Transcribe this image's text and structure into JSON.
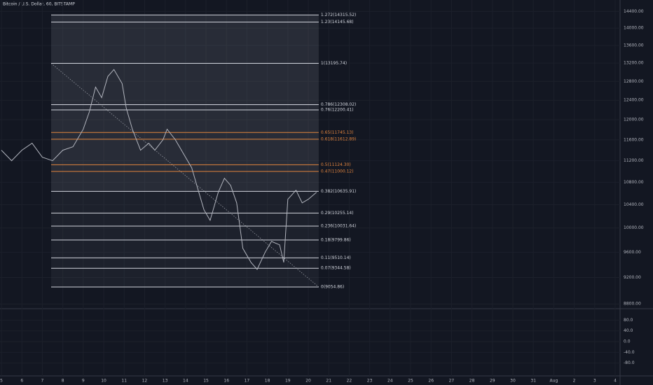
{
  "chart_data": {
    "type": "line",
    "title": "Bitcoin / U.S. Dollar, 60, BITSTAMP",
    "log_scale": true,
    "grid": true,
    "color": "#b2b5be",
    "x": [
      5.0,
      5.5,
      6.0,
      6.5,
      7.0,
      7.5,
      8.0,
      8.5,
      9.0,
      9.3,
      9.6,
      9.9,
      10.2,
      10.5,
      10.9,
      11.1,
      11.4,
      11.8,
      12.2,
      12.5,
      12.9,
      13.1,
      13.5,
      14.0,
      14.3,
      14.6,
      14.9,
      15.2,
      15.6,
      15.9,
      16.2,
      16.5,
      16.8,
      17.2,
      17.5,
      17.9,
      18.2,
      18.6,
      18.8,
      19.0,
      19.4,
      19.7,
      20.0,
      20.4
    ],
    "values": [
      11400,
      11200,
      11400,
      11535,
      11266,
      11200,
      11400,
      11467,
      11810,
      12164,
      12678,
      12455,
      12905,
      13058,
      12753,
      12237,
      11810,
      11400,
      11535,
      11400,
      11604,
      11810,
      11604,
      11266,
      11069,
      10683,
      10311,
      10130,
      10620,
      10873,
      10746,
      10433,
      9663,
      9437,
      9327,
      9606,
      9777,
      9720,
      9437,
      10496,
      10657,
      10433,
      10496,
      10620
    ],
    "xlim": [
      4.93,
      35.24
    ],
    "xticks": [
      5,
      6,
      7,
      8,
      9,
      10,
      11,
      12,
      13,
      14,
      15,
      16,
      17,
      18,
      19,
      20,
      21,
      22,
      23,
      24,
      25,
      26,
      27,
      28,
      29,
      30,
      31,
      {
        "value": 32,
        "label": "Aug"
      },
      {
        "value": 33,
        "label": "2"
      },
      {
        "value": 34,
        "label": "3"
      },
      {
        "value": 35,
        "label": "4"
      }
    ],
    "ylim": [
      8740,
      14680
    ],
    "yticks": [
      {
        "value": 8800,
        "label": "8800.00"
      },
      {
        "value": 9200,
        "label": "9200.00"
      },
      {
        "value": 9600,
        "label": "9600.00"
      },
      {
        "value": 10000,
        "label": "10000.00"
      },
      {
        "value": 10400,
        "label": "10400.00"
      },
      {
        "value": 10800,
        "label": "10800.00"
      },
      {
        "value": 11200,
        "label": "11200.00"
      },
      {
        "value": 11600,
        "label": "11600.00"
      },
      {
        "value": 12000,
        "label": "12000.00"
      },
      {
        "value": 12400,
        "label": "12400.00"
      },
      {
        "value": 12800,
        "label": "12800.00"
      },
      {
        "value": 13200,
        "label": "13200.00"
      },
      {
        "value": 13600,
        "label": "13600.00"
      },
      {
        "value": 14000,
        "label": "14000.00"
      },
      {
        "value": 14400,
        "label": "14400.00"
      }
    ],
    "fib_range": [
      7.43,
      20.51
    ],
    "levels": [
      {
        "label": "1.272(14315.52)",
        "price": 14315.52,
        "color": "#d1d4dc"
      },
      {
        "label": "1.23(14145.68)",
        "price": 14145.68,
        "color": "#d1d4dc"
      },
      {
        "label": "1(13195.74)",
        "price": 13195.74,
        "color": "#d1d4dc"
      },
      {
        "label": "0.786(12308.02)",
        "price": 12308.02,
        "color": "#d1d4dc"
      },
      {
        "label": "0.76(12200.41)",
        "price": 12200.41,
        "color": "#d1d4dc"
      },
      {
        "label": "0.65(11745.13)",
        "price": 11745.13,
        "color": "#e0833d"
      },
      {
        "label": "0.618(11612.89)",
        "price": 11612.89,
        "color": "#e0833d"
      },
      {
        "label": "0.5(11124.30)",
        "price": 11124.3,
        "color": "#e0833d"
      },
      {
        "label": "0.47(11000.12)",
        "price": 11000.12,
        "color": "#e0833d"
      },
      {
        "label": "0.382(10635.91)",
        "price": 10635.91,
        "color": "#d1d4dc"
      },
      {
        "label": "0.29(10255.14)",
        "price": 10255.14,
        "color": "#d1d4dc"
      },
      {
        "label": "0.236(10031.64)",
        "price": 10031.64,
        "color": "#d1d4dc"
      },
      {
        "label": "0.18(9799.86)",
        "price": 9799.86,
        "color": "#d1d4dc"
      },
      {
        "label": "0.11(9510.14)",
        "price": 9510.14,
        "color": "#d1d4dc"
      },
      {
        "label": "0.07(9344.58)",
        "price": 9344.58,
        "color": "#d1d4dc"
      },
      {
        "label": "0(9054.86)",
        "price": 9054.86,
        "color": "#d1d4dc"
      }
    ]
  },
  "indicator": {
    "ylim": [
      -125,
      120
    ],
    "yticks": [
      {
        "value": 80,
        "label": "80.0"
      },
      {
        "value": 40,
        "label": "40.0"
      },
      {
        "value": 0,
        "label": "0.0"
      },
      {
        "value": -40,
        "label": "-40.0"
      },
      {
        "value": -80,
        "label": "-80.0"
      }
    ]
  }
}
